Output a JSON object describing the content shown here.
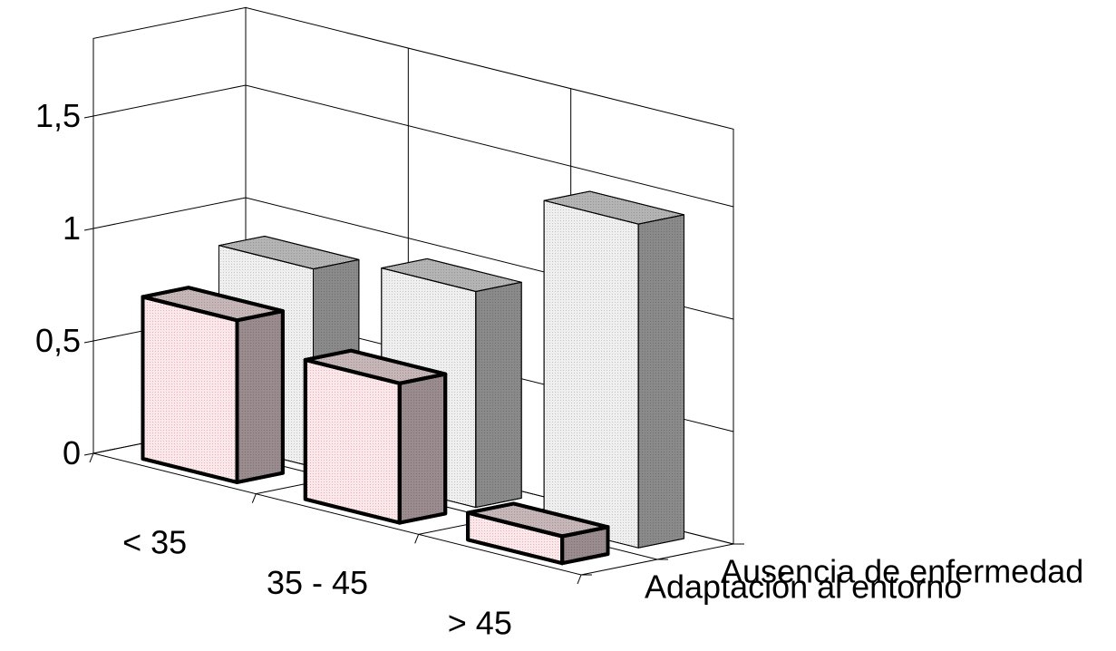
{
  "chart_data": {
    "type": "bar",
    "subtype": "3d-column",
    "categories": [
      "< 35",
      "35 - 45",
      "> 45"
    ],
    "series": [
      {
        "name": "Adaptación al entorno",
        "values": [
          0.72,
          0.62,
          0.12
        ],
        "colors": {
          "front": "#fbe8ea",
          "top": "#c6b6b8",
          "side": "#9a8c8e"
        }
      },
      {
        "name": "Ausencia de enfermedad",
        "values": [
          0.88,
          0.96,
          1.44
        ],
        "colors": {
          "front": "#efefef",
          "top": "#b4b4b4",
          "side": "#8a8a8a"
        }
      }
    ],
    "yticks": [
      "0",
      "0,5",
      "1",
      "1,5"
    ],
    "ylim": [
      0,
      1.5
    ],
    "grid": true,
    "title": "",
    "xlabel": "",
    "ylabel": ""
  }
}
